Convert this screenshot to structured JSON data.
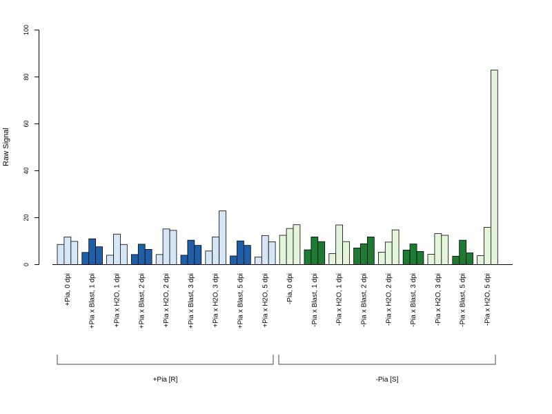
{
  "chart_data": {
    "type": "bar",
    "ylabel": "Raw Signal",
    "ylim": [
      0,
      100
    ],
    "yticks": [
      0,
      20,
      40,
      60,
      80,
      100
    ],
    "grid": false,
    "legend": "none",
    "colors": {
      "plus_light": "#d6e6f6",
      "plus_dark": "#1f5fa8",
      "minus_light": "#e4f5dc",
      "minus_dark": "#1e7b34",
      "stroke": "#000000"
    },
    "categories": [
      {
        "label": "+Pia, 0 dpi",
        "group": "plus",
        "shade": "light",
        "values": [
          8.6,
          11.8,
          9.9
        ]
      },
      {
        "label": "+Pia x Blast, 1 dpi",
        "group": "plus",
        "shade": "dark",
        "values": [
          5.2,
          11.0,
          7.6
        ]
      },
      {
        "label": "+Pia x H2O, 1 dpi",
        "group": "plus",
        "shade": "light",
        "values": [
          4.0,
          13.0,
          8.6
        ]
      },
      {
        "label": "+Pia x Blast, 2 dpi",
        "group": "plus",
        "shade": "dark",
        "values": [
          4.3,
          8.7,
          6.5
        ]
      },
      {
        "label": "+Pia x H2O, 2 dpi",
        "group": "plus",
        "shade": "light",
        "values": [
          4.3,
          15.2,
          14.6
        ]
      },
      {
        "label": "+Pia x Blast, 3 dpi",
        "group": "plus",
        "shade": "dark",
        "values": [
          4.0,
          10.4,
          8.2
        ]
      },
      {
        "label": "+Pia x H2O, 3 dpi",
        "group": "plus",
        "shade": "light",
        "values": [
          5.8,
          11.8,
          22.9
        ]
      },
      {
        "label": "+Pia x Blast, 5 dpi",
        "group": "plus",
        "shade": "dark",
        "values": [
          3.7,
          10.1,
          8.2
        ]
      },
      {
        "label": "+Pia x H2O, 5 dpi",
        "group": "plus",
        "shade": "light",
        "values": [
          3.2,
          12.4,
          9.7
        ]
      },
      {
        "label": "-Pia, 0 dpi",
        "group": "minus",
        "shade": "light",
        "values": [
          12.5,
          15.4,
          17.0
        ]
      },
      {
        "label": "-Pia x Blast, 1 dpi",
        "group": "minus",
        "shade": "dark",
        "values": [
          6.3,
          11.8,
          9.8
        ]
      },
      {
        "label": "-Pia x H2O, 1 dpi",
        "group": "minus",
        "shade": "light",
        "values": [
          4.7,
          16.9,
          9.8
        ]
      },
      {
        "label": "-Pia x Blast, 2 dpi",
        "group": "minus",
        "shade": "dark",
        "values": [
          7.1,
          8.9,
          11.8
        ]
      },
      {
        "label": "-Pia x H2O, 2 dpi",
        "group": "minus",
        "shade": "light",
        "values": [
          5.3,
          9.6,
          14.8
        ]
      },
      {
        "label": "-Pia x Blast, 3 dpi",
        "group": "minus",
        "shade": "dark",
        "values": [
          6.2,
          8.8,
          5.6
        ]
      },
      {
        "label": "-Pia x H2O, 3 dpi",
        "group": "minus",
        "shade": "light",
        "values": [
          4.4,
          13.2,
          12.5
        ]
      },
      {
        "label": "-Pia x Blast, 5 dpi",
        "group": "minus",
        "shade": "dark",
        "values": [
          3.6,
          10.4,
          5.0
        ]
      },
      {
        "label": "-Pia x H2O, 5 dpi",
        "group": "minus",
        "shade": "light",
        "values": [
          3.8,
          15.9,
          82.9
        ]
      }
    ],
    "groups": [
      {
        "label": "+Pia [R]"
      },
      {
        "label": "-Pia [S]"
      }
    ]
  }
}
